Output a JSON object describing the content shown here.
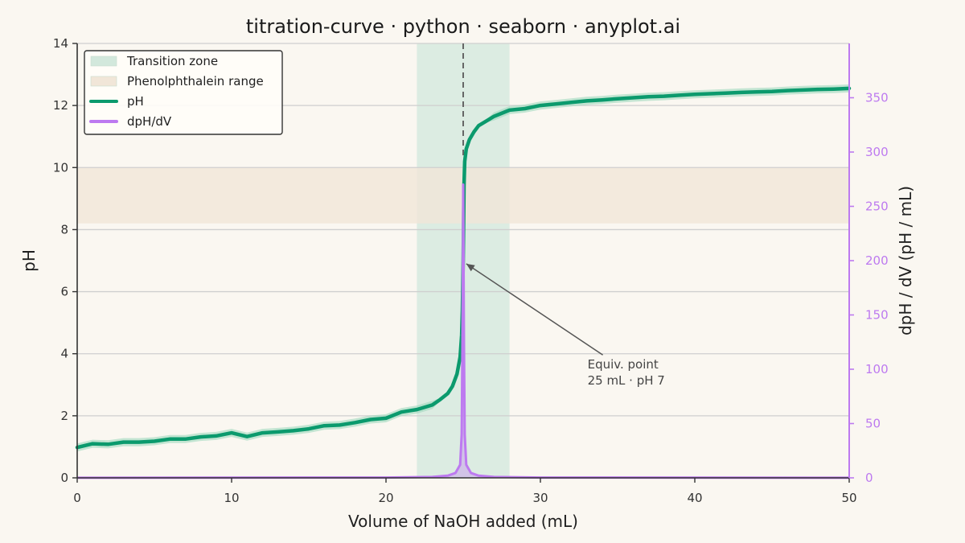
{
  "chart_data": {
    "type": "line",
    "title": "titration-curve · python · seaborn · anyplot.ai",
    "xlabel": "Volume of NaOH added (mL)",
    "ylabel": "pH",
    "y2label": "dpH / dV  (pH / mL)",
    "xlim": [
      0,
      50
    ],
    "ylim": [
      0,
      14
    ],
    "y2lim": [
      0,
      400
    ],
    "xticks": [
      0,
      10,
      20,
      30,
      40,
      50
    ],
    "yticks": [
      0,
      2,
      4,
      6,
      8,
      10,
      12,
      14
    ],
    "y2ticks": [
      0,
      50,
      100,
      150,
      200,
      250,
      300,
      350
    ],
    "grid": "y-major",
    "legend_placement": "top-left",
    "colors": {
      "background": "#FAF7F1",
      "ph": "#0B9A6D",
      "ph_band": "#9FD9BE",
      "derivative": "#BD7AF0",
      "transition": "#D2E8DC",
      "phenolphthalein": "#F1E6D8",
      "axis": "#333333",
      "grid": "#CFCFCF",
      "equiv_line": "#666666"
    },
    "legend": [
      {
        "label": "Transition zone",
        "kind": "patch",
        "color": "#D2E8DC"
      },
      {
        "label": "Phenolphthalein range",
        "kind": "patch",
        "color": "#F1E6D8"
      },
      {
        "label": "pH",
        "kind": "line",
        "color": "#0B9A6D"
      },
      {
        "label": "dpH/dV",
        "kind": "line",
        "color": "#BD7AF0"
      }
    ],
    "regions": [
      {
        "name": "Transition zone",
        "axis": "x",
        "from": 22,
        "to": 28
      },
      {
        "name": "Phenolphthalein range",
        "axis": "y",
        "from": 8.2,
        "to": 10.0
      }
    ],
    "equivalence_point": {
      "x": 25,
      "y": 7
    },
    "annotation": {
      "lines": [
        "Equiv. point",
        "25 mL · pH 7"
      ],
      "text_x": 33,
      "text_y": 3.65,
      "arrow_to_x": 25.2,
      "arrow_to_y": 6.9
    },
    "series": [
      {
        "name": "pH",
        "axis": "left",
        "x": [
          0,
          1,
          2,
          3,
          4,
          5,
          6,
          7,
          8,
          9,
          10,
          11,
          12,
          13,
          14,
          15,
          16,
          17,
          18,
          19,
          20,
          21,
          22,
          23,
          23.5,
          24,
          24.3,
          24.6,
          24.8,
          24.9,
          24.95,
          25,
          25.05,
          25.1,
          25.2,
          25.4,
          25.7,
          26,
          26.5,
          27,
          28,
          29,
          30,
          31,
          32,
          33,
          34,
          35,
          36,
          37,
          38,
          39,
          40,
          41,
          42,
          43,
          44,
          45,
          46,
          47,
          48,
          49,
          50
        ],
        "values": [
          0.98,
          1.1,
          1.08,
          1.15,
          1.15,
          1.18,
          1.25,
          1.25,
          1.32,
          1.35,
          1.45,
          1.33,
          1.45,
          1.48,
          1.52,
          1.58,
          1.68,
          1.7,
          1.78,
          1.88,
          1.92,
          2.12,
          2.2,
          2.35,
          2.52,
          2.72,
          2.95,
          3.35,
          3.9,
          4.6,
          5.4,
          7.0,
          9.4,
          10.2,
          10.6,
          10.9,
          11.15,
          11.35,
          11.5,
          11.65,
          11.85,
          11.9,
          12.0,
          12.05,
          12.1,
          12.15,
          12.18,
          12.22,
          12.25,
          12.28,
          12.3,
          12.33,
          12.36,
          12.38,
          12.4,
          12.42,
          12.44,
          12.45,
          12.48,
          12.5,
          12.52,
          12.53,
          12.55
        ]
      },
      {
        "name": "dpH/dV",
        "axis": "right",
        "x": [
          0,
          20,
          23,
          24,
          24.5,
          24.8,
          24.9,
          24.95,
          25,
          25.05,
          25.1,
          25.2,
          25.5,
          26,
          27,
          30,
          50
        ],
        "values": [
          0.1,
          0.3,
          0.8,
          2.0,
          4.5,
          12,
          40,
          120,
          270,
          120,
          40,
          12,
          4.5,
          2.0,
          0.8,
          0.3,
          0.1
        ]
      }
    ]
  }
}
